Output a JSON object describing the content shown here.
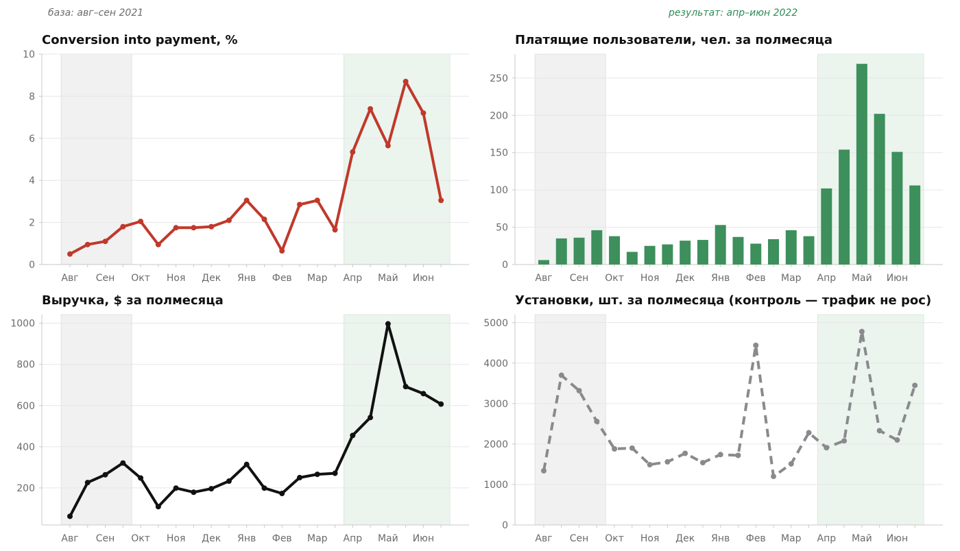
{
  "header": {
    "base_note": "база: авг–сен 2021",
    "result_note": "результат: апр–июн 2022"
  },
  "colors": {
    "base_shade": "#f1f1f1",
    "result_shade": "#ecf4ee",
    "conversion_line": "#c0392b",
    "paying_bars": "#3d8f5c",
    "revenue_line": "#111111",
    "installs_line": "#8a8a8e",
    "note_base": "#6b6b6b",
    "note_result": "#2e8b57",
    "grid": "#e6e6e6",
    "axis": "#c8c8c8",
    "tick_text": "#6b6b6b"
  },
  "months": [
    "Авг",
    "Сен",
    "Окт",
    "Ноя",
    "Дек",
    "Янв",
    "Фев",
    "Мар",
    "Апр",
    "Май",
    "Июн"
  ],
  "chart_data": [
    {
      "id": "conversion",
      "type": "line",
      "title": "Conversion into payment, %",
      "xlabel": "",
      "ylabel": "",
      "ylim": [
        0,
        10
      ],
      "yticks": [
        0,
        2,
        4,
        6,
        8,
        10
      ],
      "values": [
        0.5,
        0.95,
        1.1,
        1.8,
        2.05,
        0.95,
        1.75,
        1.75,
        1.8,
        2.1,
        3.05,
        2.15,
        0.65,
        2.85,
        3.05,
        1.65,
        5.35,
        7.4,
        5.65,
        8.7,
        7.2,
        3.05
      ],
      "grid": true,
      "base_period": "авг–сен 2021",
      "result_period": "апр–июн 2022"
    },
    {
      "id": "paying_users",
      "type": "bar",
      "title": "Платящие пользователи, чел. за полмесяца",
      "xlabel": "",
      "ylabel": "",
      "ylim": [
        0,
        282
      ],
      "yticks": [
        0,
        50,
        100,
        150,
        200,
        250
      ],
      "values": [
        6,
        35,
        36,
        46,
        38,
        17,
        25,
        27,
        32,
        33,
        53,
        37,
        28,
        34,
        46,
        38,
        102,
        154,
        269,
        202,
        151,
        106
      ],
      "grid": true
    },
    {
      "id": "revenue",
      "type": "line",
      "title": "Выручка, $ за полмесяца",
      "xlabel": "",
      "ylabel": "",
      "ylim": [
        20,
        1042
      ],
      "yticks": [
        200,
        400,
        600,
        800,
        1000
      ],
      "values": [
        62,
        226,
        264,
        321,
        248,
        109,
        199,
        179,
        196,
        233,
        314,
        199,
        173,
        250,
        266,
        271,
        455,
        542,
        997,
        692,
        658,
        607
      ],
      "grid": true
    },
    {
      "id": "installs",
      "type": "line",
      "line_style": "dashed",
      "title": "Установки, шт. за полмесяца  (контроль — трафик не рос)",
      "xlabel": "",
      "ylabel": "",
      "ylim": [
        0,
        5200
      ],
      "yticks": [
        0,
        1000,
        2000,
        3000,
        4000,
        5000
      ],
      "values": [
        1340,
        3700,
        3320,
        2560,
        1880,
        1900,
        1490,
        1560,
        1770,
        1540,
        1740,
        1720,
        4440,
        1200,
        1510,
        2280,
        1910,
        2080,
        4780,
        2330,
        2100,
        3450
      ],
      "grid": true
    }
  ]
}
